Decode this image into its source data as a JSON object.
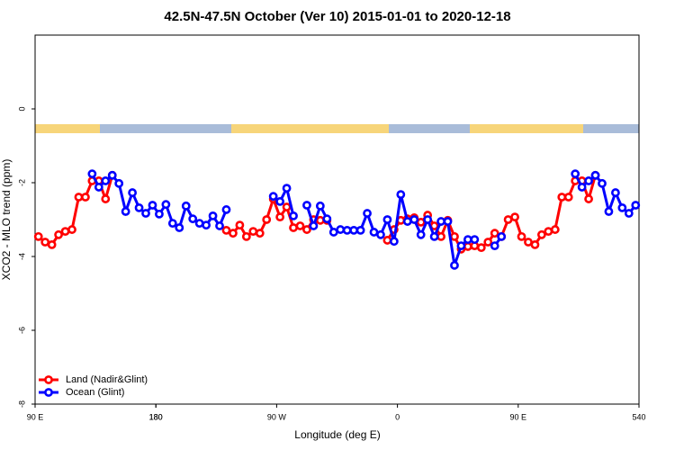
{
  "chart_data": {
    "type": "line",
    "title": "42.5N-47.5N October (Ver 10)   2015-01-01 to 2020-12-18",
    "xlabel": "Longitude (deg E)",
    "ylabel": "XCO2 - MLO trend (ppm)",
    "xlim": [
      90,
      540
    ],
    "ylim": [
      -8,
      2
    ],
    "xticks": [
      {
        "value": 90,
        "label": "90 E"
      },
      180,
      {
        "value": 270,
        "label": "90 W"
      },
      {
        "value": 360,
        "label": "0"
      },
      {
        "value": 450,
        "label": "90 E"
      },
      180,
      540
    ],
    "yticks": [
      0,
      -2,
      -4,
      -6,
      -8
    ],
    "legend": "bottomleft",
    "x": [
      92.5,
      97.5,
      102.5,
      107.5,
      112.5,
      117.5,
      122.5,
      127.5,
      132.5,
      137.5,
      142.5,
      147.5,
      152.5,
      157.5,
      162.5,
      167.5,
      172.5,
      177.5,
      182.5,
      187.5,
      192.5,
      197.5,
      202.5,
      207.5,
      212.5,
      217.5,
      222.5,
      227.5,
      232.5,
      237.5,
      242.5,
      247.5,
      252.5,
      257.5,
      262.5,
      267.5,
      272.5,
      277.5,
      282.5,
      287.5,
      292.5,
      297.5,
      302.5,
      307.5,
      312.5,
      317.5,
      322.5,
      327.5,
      332.5,
      337.5,
      342.5,
      347.5,
      352.5,
      357.5,
      362.5,
      367.5,
      372.5,
      377.5,
      382.5,
      387.5,
      392.5,
      397.5,
      402.5,
      407.5,
      412.5,
      417.5,
      422.5,
      427.5,
      432.5,
      437.5,
      442.5,
      447.5,
      452.5,
      457.5,
      462.5,
      467.5,
      472.5,
      477.5,
      482.5,
      487.5,
      492.5,
      497.5,
      502.5,
      507.5,
      512.5,
      517.5,
      522.5,
      527.5,
      532.5,
      537.5
    ],
    "series": [
      {
        "name": "Land (Nadir&Glint)",
        "color": "#ff0000",
        "values": [
          -3.46,
          -3.61,
          -3.68,
          -3.41,
          -3.32,
          -3.27,
          -2.39,
          -2.39,
          -1.95,
          -1.95,
          -2.44,
          -1.8,
          null,
          null,
          null,
          null,
          null,
          null,
          null,
          null,
          null,
          null,
          null,
          null,
          null,
          null,
          null,
          null,
          -3.29,
          -3.37,
          -3.15,
          -3.46,
          -3.32,
          -3.37,
          -3.0,
          -2.44,
          -2.93,
          -2.66,
          -3.22,
          -3.17,
          -3.27,
          -3.0,
          -3.02,
          -3.02,
          null,
          null,
          null,
          null,
          null,
          null,
          null,
          null,
          -3.56,
          -3.27,
          -3.02,
          -2.98,
          -2.95,
          -3.07,
          -2.88,
          -3.17,
          -3.46,
          -3.02,
          -3.46,
          -3.8,
          -3.73,
          -3.71,
          -3.76,
          -3.61,
          -3.37,
          -3.46,
          -3.0,
          -2.93,
          -3.46,
          -3.61,
          -3.68,
          -3.41,
          -3.32,
          -3.27,
          -2.39,
          -2.39,
          -1.95,
          -1.95,
          -2.44,
          -1.8,
          null,
          null,
          null,
          null,
          null,
          null
        ]
      },
      {
        "name": "Ocean (Glint)",
        "color": "#0000ff",
        "values": [
          null,
          null,
          null,
          null,
          null,
          null,
          null,
          null,
          -1.76,
          -2.12,
          -1.95,
          -1.8,
          -2.02,
          -2.78,
          -2.27,
          -2.68,
          -2.83,
          -2.61,
          -2.85,
          -2.59,
          -3.1,
          -3.22,
          -2.63,
          -2.98,
          -3.1,
          -3.15,
          -2.9,
          -3.17,
          -2.73,
          null,
          null,
          null,
          null,
          null,
          null,
          -2.37,
          -2.51,
          -2.15,
          -2.9,
          null,
          -2.61,
          -3.17,
          -2.63,
          -2.98,
          -3.34,
          -3.27,
          -3.29,
          -3.29,
          -3.29,
          -2.83,
          -3.34,
          -3.41,
          -3.0,
          -3.59,
          -2.32,
          -3.05,
          -3.0,
          -3.41,
          -3.0,
          -3.46,
          -3.05,
          -3.05,
          -4.24,
          -3.71,
          -3.54,
          -3.54,
          null,
          null,
          -3.71,
          -3.46,
          null,
          null,
          null,
          null,
          null,
          null,
          null,
          null,
          null,
          null,
          -1.76,
          -2.12,
          -1.95,
          -1.8,
          -2.02,
          -2.78,
          -2.27,
          -2.68,
          -2.83,
          -2.61
        ]
      }
    ]
  }
}
